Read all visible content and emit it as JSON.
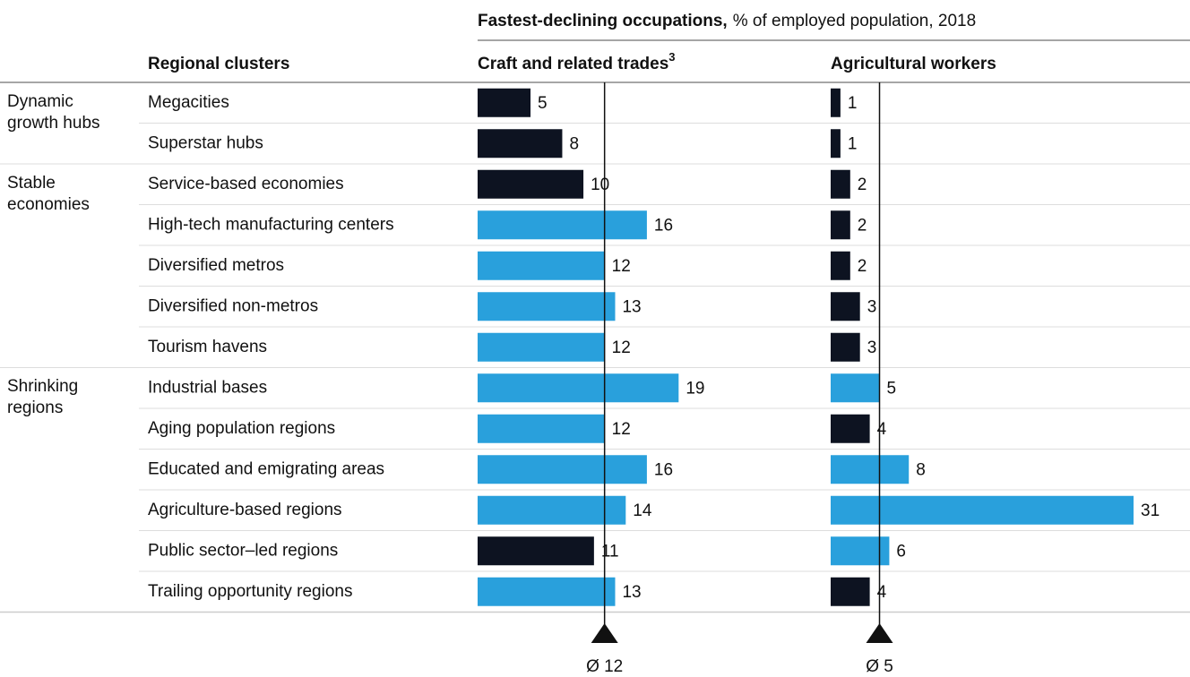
{
  "chart_data": {
    "type": "bar",
    "title": "Fastest-declining occupations,",
    "subtitle": "% of employed population, 2018",
    "row_header": "Regional clusters",
    "groups": [
      {
        "name": "Dynamic growth hubs",
        "rows": [
          0,
          1
        ]
      },
      {
        "name": "Stable economies",
        "rows": [
          2,
          3,
          4,
          5,
          6
        ]
      },
      {
        "name": "Shrinking regions",
        "rows": [
          7,
          8,
          9,
          10,
          11,
          12
        ]
      }
    ],
    "categories": [
      "Megacities",
      "Superstar hubs",
      "Service-based economies",
      "High-tech manufacturing centers",
      "Diversified metros",
      "Diversified non-metros",
      "Tourism havens",
      "Industrial bases",
      "Aging population regions",
      "Educated and emigrating areas",
      "Agriculture-based regions",
      "Public sector–led regions",
      "Trailing opportunity regions"
    ],
    "colors": {
      "above_average": "#29a0dc",
      "below_average": "#0d1321"
    },
    "series": [
      {
        "name": "Craft and related trades",
        "footnote": "3",
        "values": [
          5,
          8,
          10,
          16,
          12,
          13,
          12,
          19,
          12,
          16,
          14,
          11,
          13
        ],
        "average": {
          "value": 12,
          "label": "Ø 12"
        },
        "xlim": [
          0,
          31
        ]
      },
      {
        "name": "Agricultural workers",
        "values": [
          1,
          1,
          2,
          2,
          2,
          3,
          3,
          5,
          4,
          8,
          31,
          6,
          4
        ],
        "average": {
          "value": 5,
          "label": "Ø 5"
        },
        "xlim": [
          0,
          31
        ]
      }
    ]
  }
}
